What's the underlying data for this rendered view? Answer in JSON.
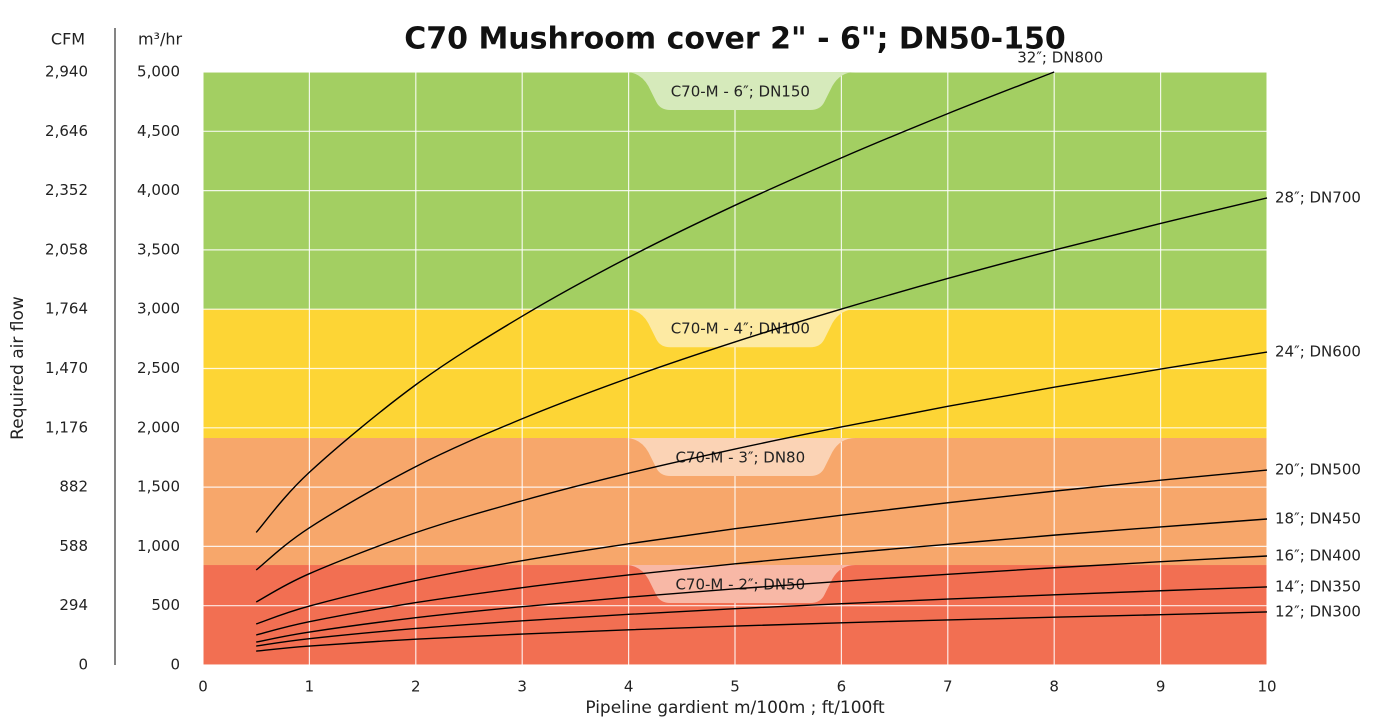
{
  "chart_data": {
    "type": "line",
    "title": "C70 Mushroom cover 2\" - 6\"; DN50-150",
    "xlabel": "Pipeline gardient m/100m ; ft/100ft",
    "ylabel": "Required air flow",
    "y_unit": "m³/hr",
    "y2_unit": "CFM",
    "xlim": [
      0,
      10
    ],
    "xticks": [
      0,
      1,
      2,
      3,
      4,
      5,
      6,
      7,
      8,
      9,
      10
    ],
    "ylim": [
      0,
      5000
    ],
    "yticks": [
      0,
      {
        "value": 500,
        "label": "500"
      },
      {
        "value": 1000,
        "label": "1,000"
      },
      {
        "value": 1500,
        "label": "1,500"
      },
      {
        "value": 2000,
        "label": "2,000"
      },
      {
        "value": 2500,
        "label": "2,500"
      },
      {
        "value": 3000,
        "label": "3,000"
      },
      {
        "value": 3500,
        "label": "3,500"
      },
      {
        "value": 4000,
        "label": "4,000"
      },
      {
        "value": 4500,
        "label": "4,500"
      },
      {
        "value": 5000,
        "label": "5,000"
      }
    ],
    "y2lim": [
      0,
      2940
    ],
    "y2ticks": [
      0,
      294,
      588,
      882,
      {
        "value": 1176,
        "label": "1,176"
      },
      {
        "value": 1470,
        "label": "1,470"
      },
      {
        "value": 1764,
        "label": "1,764"
      },
      {
        "value": 2058,
        "label": "2,058"
      },
      {
        "value": 2352,
        "label": "2,352"
      },
      {
        "value": 2646,
        "label": "2,646"
      },
      {
        "value": 2940,
        "label": "2,940"
      }
    ],
    "grid": true,
    "line_color": "#000000",
    "bands": [
      {
        "label": "C70-M - 2″; DN50",
        "from": 0,
        "to": 843,
        "color": "#f26f52",
        "tab_color": "#f8b8a6"
      },
      {
        "label": "C70-M - 3″; DN80",
        "from": 843,
        "to": 1914,
        "color": "#f7a76b",
        "tab_color": "#fbd3b5"
      },
      {
        "label": "C70-M - 4″; DN100",
        "from": 1914,
        "to": 3000,
        "color": "#fdd535",
        "tab_color": "#fdeaa3"
      },
      {
        "label": "C70-M - 6″; DN150",
        "from": 3000,
        "to": 5000,
        "color": "#a3cf62",
        "tab_color": "#d6eabb"
      }
    ],
    "x": [
      0.5,
      1,
      2,
      3,
      4,
      5,
      6,
      7,
      8,
      9,
      10
    ],
    "series": [
      {
        "name": "12″; DN300",
        "values": [
          117,
          160,
          218,
          261,
          297,
          328,
          356,
          380,
          403,
          424,
          447
        ]
      },
      {
        "name": "14″; DN350",
        "values": [
          160,
          222,
          308,
          373,
          427,
          475,
          517,
          556,
          592,
          626,
          658
        ]
      },
      {
        "name": "16″; DN400",
        "values": [
          193,
          278,
          399,
          492,
          572,
          642,
          706,
          765,
          820,
          871,
          919
        ]
      },
      {
        "name": "18″; DN450",
        "values": [
          253,
          365,
          526,
          652,
          759,
          853,
          940,
          1018,
          1095,
          1164,
          1231
        ]
      },
      {
        "name": "20″; DN500",
        "values": [
          346,
          497,
          713,
          880,
          1022,
          1149,
          1263,
          1368,
          1466,
          1558,
          1644
        ]
      },
      {
        "name": "24″; DN600",
        "values": [
          531,
          770,
          1116,
          1385,
          1617,
          1821,
          2007,
          2181,
          2342,
          2495,
          2639
        ]
      },
      {
        "name": "28″; DN700",
        "values": [
          801,
          1157,
          1673,
          2076,
          2419,
          2724,
          3001,
          3259,
          3499,
          3723,
          3938
        ]
      },
      {
        "name": "32″; DN800",
        "values": [
          1118,
          1625,
          2363,
          2941,
          3437,
          3876,
          4276,
          4649,
          5000,
          null,
          null
        ]
      }
    ]
  }
}
